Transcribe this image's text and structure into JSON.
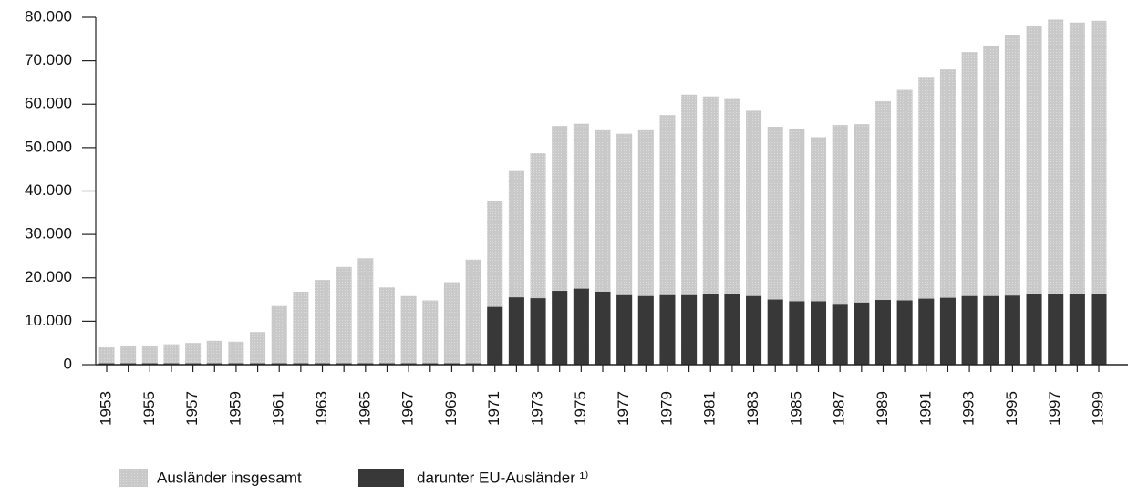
{
  "chart_data": {
    "type": "bar",
    "categories": [
      "1953",
      null,
      "1955",
      null,
      "1957",
      null,
      "1959",
      null,
      "1961",
      null,
      "1963",
      null,
      "1965",
      null,
      "1967",
      null,
      "1969",
      null,
      "1971",
      null,
      "1973",
      null,
      "1975",
      null,
      "1977",
      null,
      "1979",
      null,
      "1981",
      null,
      "1983",
      null,
      "1985",
      null,
      "1987",
      null,
      "1989",
      null,
      "1991",
      null,
      "1993",
      null,
      "1995",
      null,
      "1997",
      null,
      "1999"
    ],
    "series": [
      {
        "name": "Ausländer insgesamt",
        "color": "#c9c9c9",
        "values": [
          4000,
          4200,
          4300,
          4700,
          5000,
          5500,
          5300,
          7500,
          13500,
          16800,
          19500,
          22500,
          24500,
          17800,
          15800,
          14800,
          19000,
          24200,
          37800,
          44800,
          48700,
          55000,
          55500,
          54000,
          53200,
          54000,
          57500,
          62200,
          61800,
          61200,
          58500,
          54800,
          54300,
          52400,
          55200,
          55400,
          60700,
          63300,
          66300,
          68000,
          72000,
          73500,
          76000,
          78000,
          79500,
          78800,
          79200
        ]
      },
      {
        "name": "darunter EU-Ausländer ¹⁾",
        "color": "#383838",
        "values": [
          300,
          300,
          300,
          300,
          300,
          300,
          300,
          300,
          300,
          300,
          300,
          300,
          300,
          300,
          300,
          300,
          300,
          300,
          13300,
          15500,
          15300,
          17000,
          17500,
          16800,
          16000,
          15800,
          16000,
          16000,
          16300,
          16200,
          15800,
          15000,
          14600,
          14600,
          14000,
          14300,
          14900,
          14800,
          15200,
          15400,
          15800,
          15800,
          15900,
          16200,
          16300,
          16300,
          16300
        ]
      }
    ],
    "ylim": [
      0,
      80000
    ],
    "yticks": [
      0,
      {
        "value": 10000,
        "label": "10.000"
      },
      {
        "value": 20000,
        "label": "20.000"
      },
      {
        "value": 30000,
        "label": "30.000"
      },
      {
        "value": 40000,
        "label": "40.000"
      },
      {
        "value": 50000,
        "label": "50.000"
      },
      {
        "value": 60000,
        "label": "60.000"
      },
      {
        "value": 70000,
        "label": "70.000"
      },
      {
        "value": 80000,
        "label": "80.000"
      }
    ],
    "overlap": true
  }
}
